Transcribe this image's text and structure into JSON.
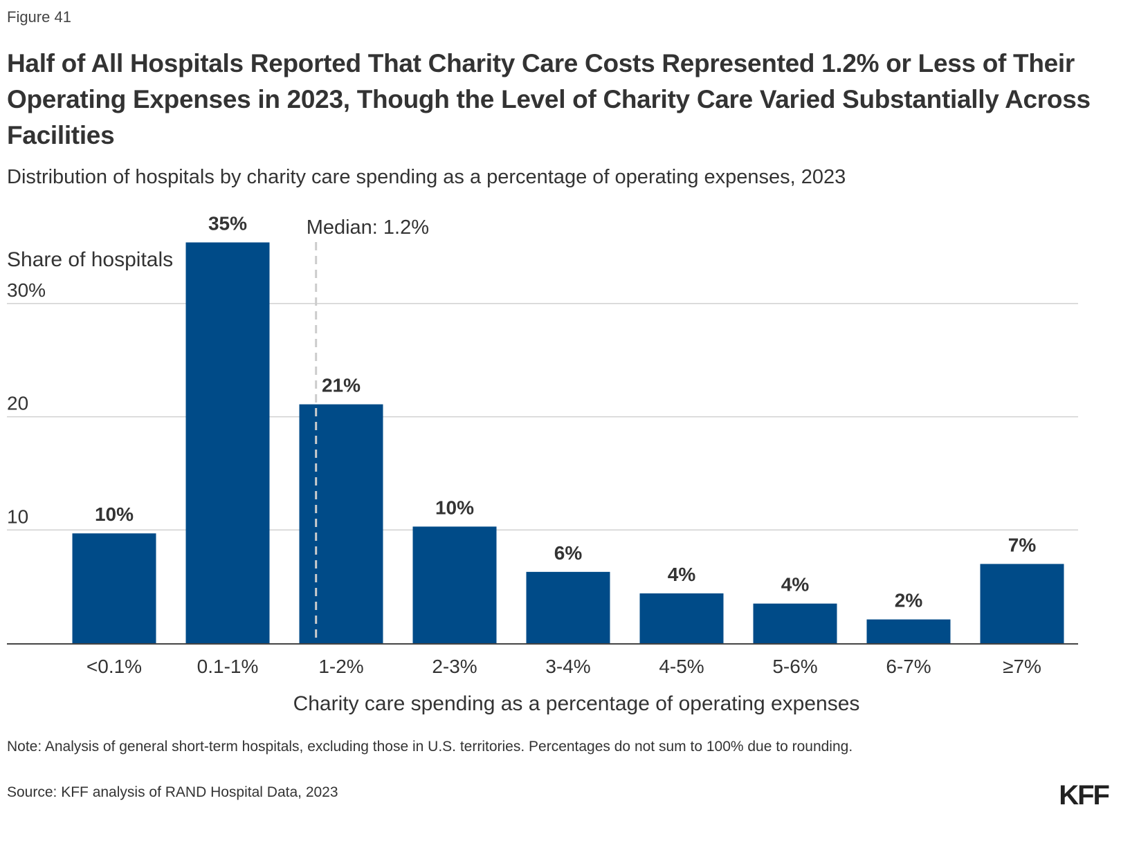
{
  "figure_label": "Figure 41",
  "title": "Half of All Hospitals Reported That Charity Care Costs Represented 1.2% or Less of Their Operating Expenses in 2023, Though the Level of Charity Care Varied Substantially Across Facilities",
  "subtitle": "Distribution of hospitals by charity care spending as a percentage of operating expenses, 2023",
  "note": "Note: Analysis of general short-term hospitals, excluding those in U.S. territories. Percentages do not sum to 100% due to rounding.",
  "source": "Source: KFF analysis of RAND Hospital Data, 2023",
  "logo": "KFF",
  "colors": {
    "bar": "#004b88",
    "gridline": "#d0d0d0",
    "axis": "#444444",
    "median_line": "#cccccc"
  },
  "chart_data": {
    "type": "bar",
    "title": "Half of All Hospitals Reported That Charity Care Costs Represented 1.2% or Less of Their Operating Expenses in 2023, Though the Level of Charity Care Varied Substantially Across Facilities",
    "subtitle": "Distribution of hospitals by charity care spending as a percentage of operating expenses, 2023",
    "xlabel": "Charity care spending as a percentage of operating expenses",
    "ylabel": "Share of hospitals",
    "categories": [
      "<0.1%",
      "0.1-1%",
      "1-2%",
      "2-3%",
      "3-4%",
      "4-5%",
      "5-6%",
      "6-7%",
      "≥7%"
    ],
    "values": [
      9.7,
      35.4,
      21.1,
      10.3,
      6.3,
      4.4,
      3.5,
      2.1,
      7.0
    ],
    "data_labels": [
      "10%",
      "35%",
      "21%",
      "10%",
      "6%",
      "4%",
      "4%",
      "2%",
      "7%"
    ],
    "ylim": [
      0,
      35
    ],
    "yticks": [
      10,
      20,
      30
    ],
    "ytick_labels": [
      "10",
      "20",
      "30%"
    ],
    "grid": true,
    "legend": "none",
    "annotations": [
      {
        "type": "vertical-dashed-line",
        "x_category": "1-2%",
        "x_value": 1.2,
        "label": "Median: 1.2%"
      }
    ]
  }
}
